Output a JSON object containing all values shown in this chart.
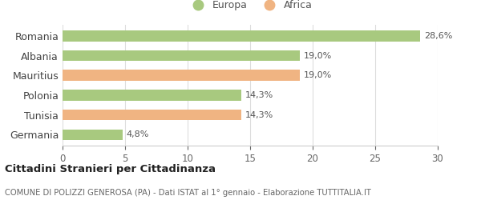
{
  "categories": [
    "Romania",
    "Albania",
    "Mauritius",
    "Polonia",
    "Tunisia",
    "Germania"
  ],
  "values": [
    28.6,
    19.0,
    19.0,
    14.3,
    14.3,
    4.8
  ],
  "labels": [
    "28,6%",
    "19,0%",
    "19,0%",
    "14,3%",
    "14,3%",
    "4,8%"
  ],
  "colors": [
    "#a8c97f",
    "#a8c97f",
    "#f0b482",
    "#a8c97f",
    "#f0b482",
    "#a8c97f"
  ],
  "legend_labels": [
    "Europa",
    "Africa"
  ],
  "legend_colors": [
    "#a8c97f",
    "#f0b482"
  ],
  "xlim": [
    0,
    30
  ],
  "xticks": [
    0,
    5,
    10,
    15,
    20,
    25,
    30
  ],
  "title_bold": "Cittadini Stranieri per Cittadinanza",
  "subtitle": "COMUNE DI POLIZZI GENEROSA (PA) - Dati ISTAT al 1° gennaio - Elaborazione TUTTITALIA.IT",
  "bar_height": 0.55,
  "background_color": "#ffffff",
  "grid_color": "#dddddd"
}
